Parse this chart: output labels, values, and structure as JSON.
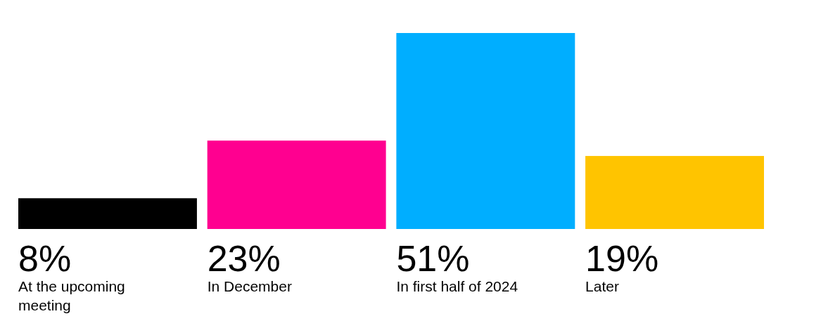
{
  "chart_data": {
    "type": "bar",
    "categories": [
      "At the upcoming meeting",
      "In December",
      "In first half of 2024",
      "Later"
    ],
    "values": [
      8,
      23,
      51,
      19
    ],
    "colors": [
      "#000000",
      "#ff0090",
      "#00aeff",
      "#ffc400"
    ],
    "value_labels": [
      "8%",
      "23%",
      "51%",
      "19%"
    ]
  }
}
